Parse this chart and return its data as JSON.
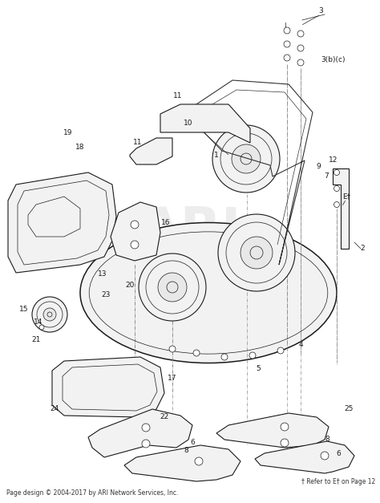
{
  "background_color": "#ffffff",
  "line_color": "#1a1a1a",
  "gray_fill": "#e8e8e8",
  "light_fill": "#f2f2f2",
  "footer_text": "Page design © 2004-2017 by ARI Network Services, Inc.",
  "footnote_text": "† Refer to E† on Page 12",
  "watermark_text": "ARI",
  "figsize": [
    4.74,
    6.27
  ],
  "dpi": 100
}
